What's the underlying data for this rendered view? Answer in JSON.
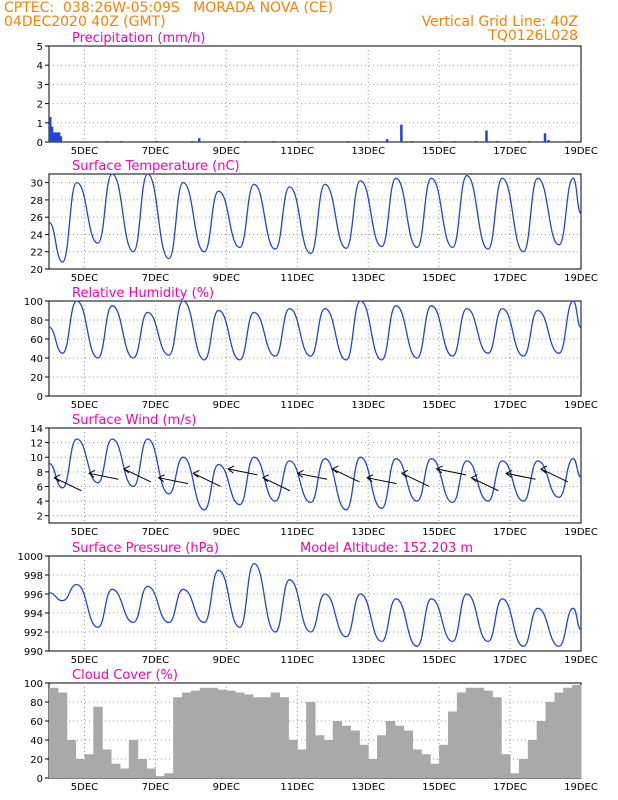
{
  "header": {
    "line1": "CPTEC:  038:26W-05:09S   MORADA NOVA (CE)",
    "line2": "04DEC2020 40Z (GMT)",
    "right1": "Vertical Grid Line: 40Z",
    "right2": "TQ0126L028"
  },
  "colors": {
    "title": "#ff00aa",
    "header": "#ff7f00",
    "line": "#2244dd",
    "cloud": "#a9a9a9",
    "grid": "#999999",
    "arrow": "#000000"
  },
  "chart_data": [
    {
      "type": "bar",
      "title": "Precipitation (mm/h)",
      "ylim": [
        0,
        5
      ],
      "yticks": [
        0,
        1,
        2,
        3,
        4,
        5
      ],
      "xlim": [
        4.0,
        19.0
      ],
      "xtick_labels": [
        "5DEC",
        "7DEC",
        "9DEC",
        "11DEC",
        "13DEC",
        "15DEC",
        "17DEC",
        "19DEC"
      ],
      "x": [
        4.0,
        4.05,
        4.1,
        4.15,
        4.2,
        4.25,
        4.3,
        5.6,
        6.0,
        7.0,
        8.0,
        8.2,
        9.5,
        10.3,
        11.0,
        12.4,
        13.5,
        13.9,
        14.2,
        15.0,
        15.4,
        16.0,
        16.3,
        16.6,
        17.2,
        17.5,
        17.95,
        18.05,
        18.6
      ],
      "values": [
        1.3,
        0.8,
        0.5,
        0.5,
        0.5,
        0.5,
        0.3,
        0.05,
        0.05,
        0.05,
        0.05,
        0.2,
        0.05,
        0.05,
        0.05,
        0.05,
        0.15,
        0.9,
        0.05,
        0.05,
        0.05,
        0.05,
        0.6,
        0.05,
        0.05,
        0.05,
        0.45,
        0.1,
        0.05
      ]
    },
    {
      "type": "line",
      "title": "Surface Temperature (nC)",
      "ylim": [
        20,
        31
      ],
      "yticks": [
        20,
        22,
        24,
        26,
        28,
        30
      ],
      "xlim": [
        4.0,
        19.0
      ],
      "xtick_labels": [
        "5DEC",
        "7DEC",
        "9DEC",
        "11DEC",
        "13DEC",
        "15DEC",
        "17DEC",
        "19DEC"
      ],
      "daily_max": [
        30.0,
        31.0,
        31.0,
        30.0,
        29.0,
        29.8,
        29.5,
        29.8,
        30.2,
        30.5,
        30.5,
        30.8,
        30.5,
        30.5,
        30.5,
        30.0
      ],
      "daily_min": [
        20.8,
        23.0,
        22.0,
        21.2,
        22.0,
        22.5,
        22.3,
        21.8,
        22.4,
        22.6,
        22.5,
        22.5,
        22.3,
        22.0,
        22.8,
        22.8
      ]
    },
    {
      "type": "line",
      "title": "Relative Humidity (%)",
      "ylim": [
        0,
        100
      ],
      "yticks": [
        0,
        20,
        40,
        60,
        80,
        100
      ],
      "xlim": [
        4.0,
        19.0
      ],
      "xtick_labels": [
        "5DEC",
        "7DEC",
        "9DEC",
        "11DEC",
        "13DEC",
        "15DEC",
        "17DEC",
        "19DEC"
      ],
      "daily_max": [
        100,
        95,
        88,
        100,
        90,
        88,
        92,
        92,
        100,
        95,
        95,
        92,
        92,
        90,
        100,
        97
      ],
      "daily_min": [
        45,
        40,
        40,
        43,
        38,
        38,
        42,
        42,
        38,
        38,
        40,
        42,
        45,
        42,
        45,
        47
      ]
    },
    {
      "type": "line",
      "title": "Surface Wind (m/s)",
      "ylim": [
        1,
        14
      ],
      "yticks": [
        2,
        4,
        6,
        8,
        10,
        12,
        14
      ],
      "xlim": [
        4.0,
        19.0
      ],
      "xtick_labels": [
        "5DEC",
        "7DEC",
        "9DEC",
        "11DEC",
        "13DEC",
        "15DEC",
        "17DEC",
        "19DEC"
      ],
      "daily_max": [
        12.5,
        12.5,
        12.5,
        10.0,
        9.0,
        10.0,
        9.5,
        9.8,
        10.0,
        9.8,
        9.8,
        9.5,
        9.5,
        9.5,
        9.8,
        10.0
      ],
      "daily_min": [
        5.8,
        6.5,
        6.0,
        5.0,
        2.8,
        3.5,
        4.0,
        3.8,
        2.8,
        3.0,
        4.0,
        3.8,
        4.0,
        4.0,
        4.5,
        4.5
      ],
      "arrows_note": "wind direction vectors"
    },
    {
      "type": "line",
      "title": "Surface Pressure (hPa)",
      "subtitle": "Model Altitude: 152.203 m",
      "ylim": [
        990,
        1000
      ],
      "yticks": [
        990,
        992,
        994,
        996,
        998,
        1000
      ],
      "xlim": [
        4.0,
        19.0
      ],
      "xtick_labels": [
        "5DEC",
        "7DEC",
        "9DEC",
        "11DEC",
        "13DEC",
        "15DEC",
        "17DEC",
        "19DEC"
      ],
      "daily_max": [
        997.0,
        996.5,
        996.8,
        996.5,
        998.5,
        999.2,
        997.5,
        996.0,
        996.0,
        995.5,
        995.5,
        996.0,
        995.5,
        994.5,
        994.5,
        994.0
      ],
      "daily_min": [
        995.3,
        992.5,
        993.0,
        993.0,
        993.0,
        992.5,
        992.0,
        992.0,
        991.5,
        991.0,
        990.5,
        991.0,
        991.0,
        990.5,
        990.5,
        990.5
      ]
    },
    {
      "type": "bar",
      "title": "Cloud Cover (%)",
      "ylim": [
        0,
        100
      ],
      "yticks": [
        0,
        20,
        40,
        60,
        80,
        100
      ],
      "xlim": [
        4.0,
        19.0
      ],
      "xtick_labels": [
        "5DEC",
        "7DEC",
        "9DEC",
        "11DEC",
        "13DEC",
        "15DEC",
        "17DEC",
        "19DEC"
      ],
      "x": [
        4.0,
        4.25,
        4.5,
        4.75,
        5.0,
        5.25,
        5.5,
        5.75,
        6.0,
        6.25,
        6.5,
        6.75,
        7.0,
        7.25,
        7.5,
        7.75,
        8.0,
        8.25,
        8.5,
        8.75,
        9.0,
        9.25,
        9.5,
        9.75,
        10.0,
        10.25,
        10.5,
        10.75,
        11.0,
        11.25,
        11.5,
        11.75,
        12.0,
        12.25,
        12.5,
        12.75,
        13.0,
        13.25,
        13.5,
        13.75,
        14.0,
        14.25,
        14.5,
        14.75,
        15.0,
        15.25,
        15.5,
        15.75,
        16.0,
        16.25,
        16.5,
        16.75,
        17.0,
        17.25,
        17.5,
        17.75,
        18.0,
        18.25,
        18.5,
        18.75
      ],
      "values": [
        95,
        90,
        40,
        20,
        25,
        75,
        30,
        15,
        10,
        40,
        20,
        10,
        2,
        5,
        85,
        90,
        92,
        95,
        95,
        93,
        92,
        90,
        88,
        85,
        85,
        90,
        85,
        40,
        30,
        80,
        45,
        40,
        60,
        55,
        50,
        35,
        20,
        45,
        60,
        55,
        50,
        30,
        25,
        15,
        35,
        70,
        90,
        95,
        95,
        92,
        85,
        25,
        5,
        20,
        40,
        60,
        80,
        90,
        95,
        98
      ]
    }
  ]
}
